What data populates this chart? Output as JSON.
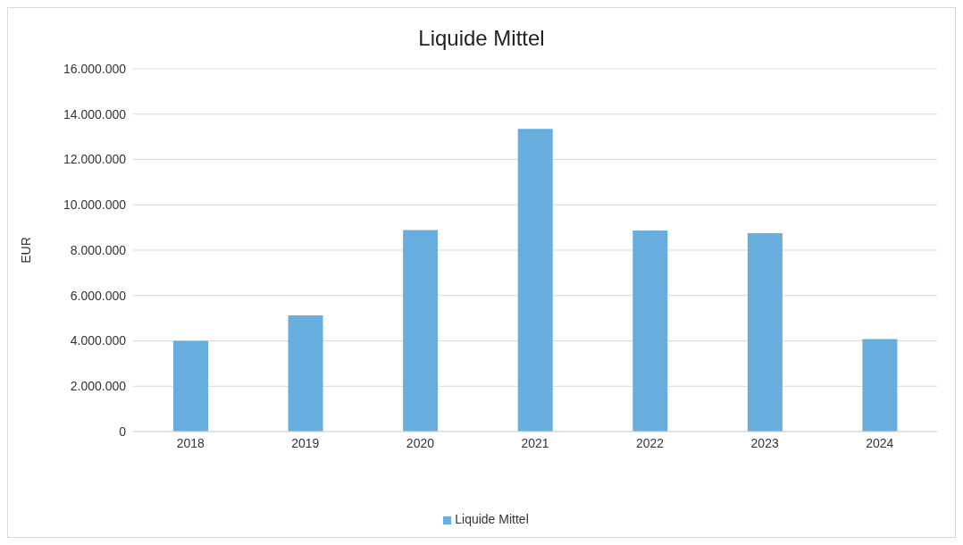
{
  "chart_data": {
    "type": "bar",
    "title": "Liquide Mittel",
    "ylabel": "EUR",
    "categories": [
      "2018",
      "2019",
      "2020",
      "2021",
      "2022",
      "2023",
      "2024"
    ],
    "series": [
      {
        "name": "Liquide Mittel",
        "color": "#67aedf",
        "values": [
          4000000,
          5120000,
          8890000,
          13350000,
          8870000,
          8750000,
          4080000
        ]
      }
    ],
    "ylim": [
      0,
      16000000
    ],
    "yticks": [
      {
        "value": 0,
        "label": "0"
      },
      {
        "value": 2000000,
        "label": "2.000.000"
      },
      {
        "value": 4000000,
        "label": "4.000.000"
      },
      {
        "value": 6000000,
        "label": "6.000.000"
      },
      {
        "value": 8000000,
        "label": "8.000.000"
      },
      {
        "value": 10000000,
        "label": "10.000.000"
      },
      {
        "value": 12000000,
        "label": "12.000.000"
      },
      {
        "value": 14000000,
        "label": "14.000.000"
      },
      {
        "value": 16000000,
        "label": "16.000.000"
      }
    ],
    "grid": "y",
    "legend": "bottom"
  }
}
